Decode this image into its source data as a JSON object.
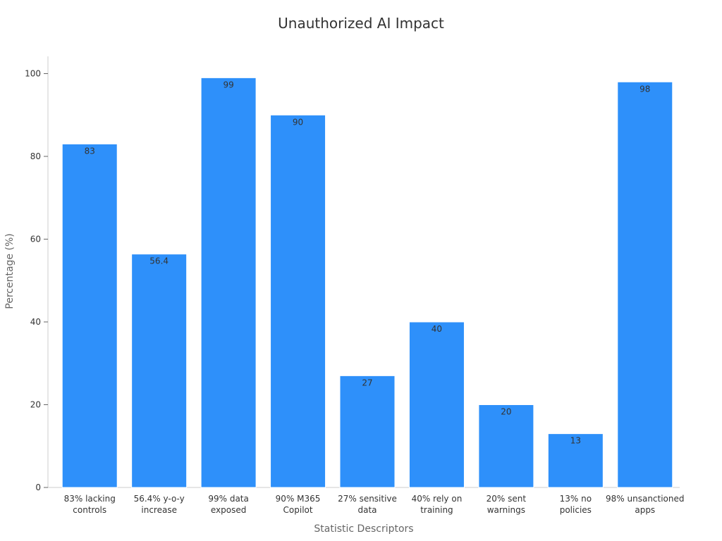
{
  "chart_data": {
    "type": "bar",
    "title": "Unauthorized AI Impact",
    "xlabel": "Statistic Descriptors",
    "ylabel": "Percentage (%)",
    "ylim": [
      0,
      100
    ],
    "yticks": [
      0,
      20,
      40,
      60,
      80,
      100
    ],
    "grid": false,
    "categories": [
      "83% lacking controls",
      "56.4% y-o-y increase",
      "99% data exposed",
      "90% M365 Copilot",
      "27% sensitive data",
      "40% rely on training",
      "20% sent warnings",
      "13% no policies",
      "98% unsanctioned apps"
    ],
    "values": [
      83,
      56.4,
      99,
      90,
      27,
      40,
      20,
      13,
      98
    ],
    "data_labels": [
      "83",
      "56.4",
      "99",
      "90",
      "27",
      "40",
      "20",
      "13",
      "98"
    ],
    "bar_color": "#2e90fa"
  }
}
